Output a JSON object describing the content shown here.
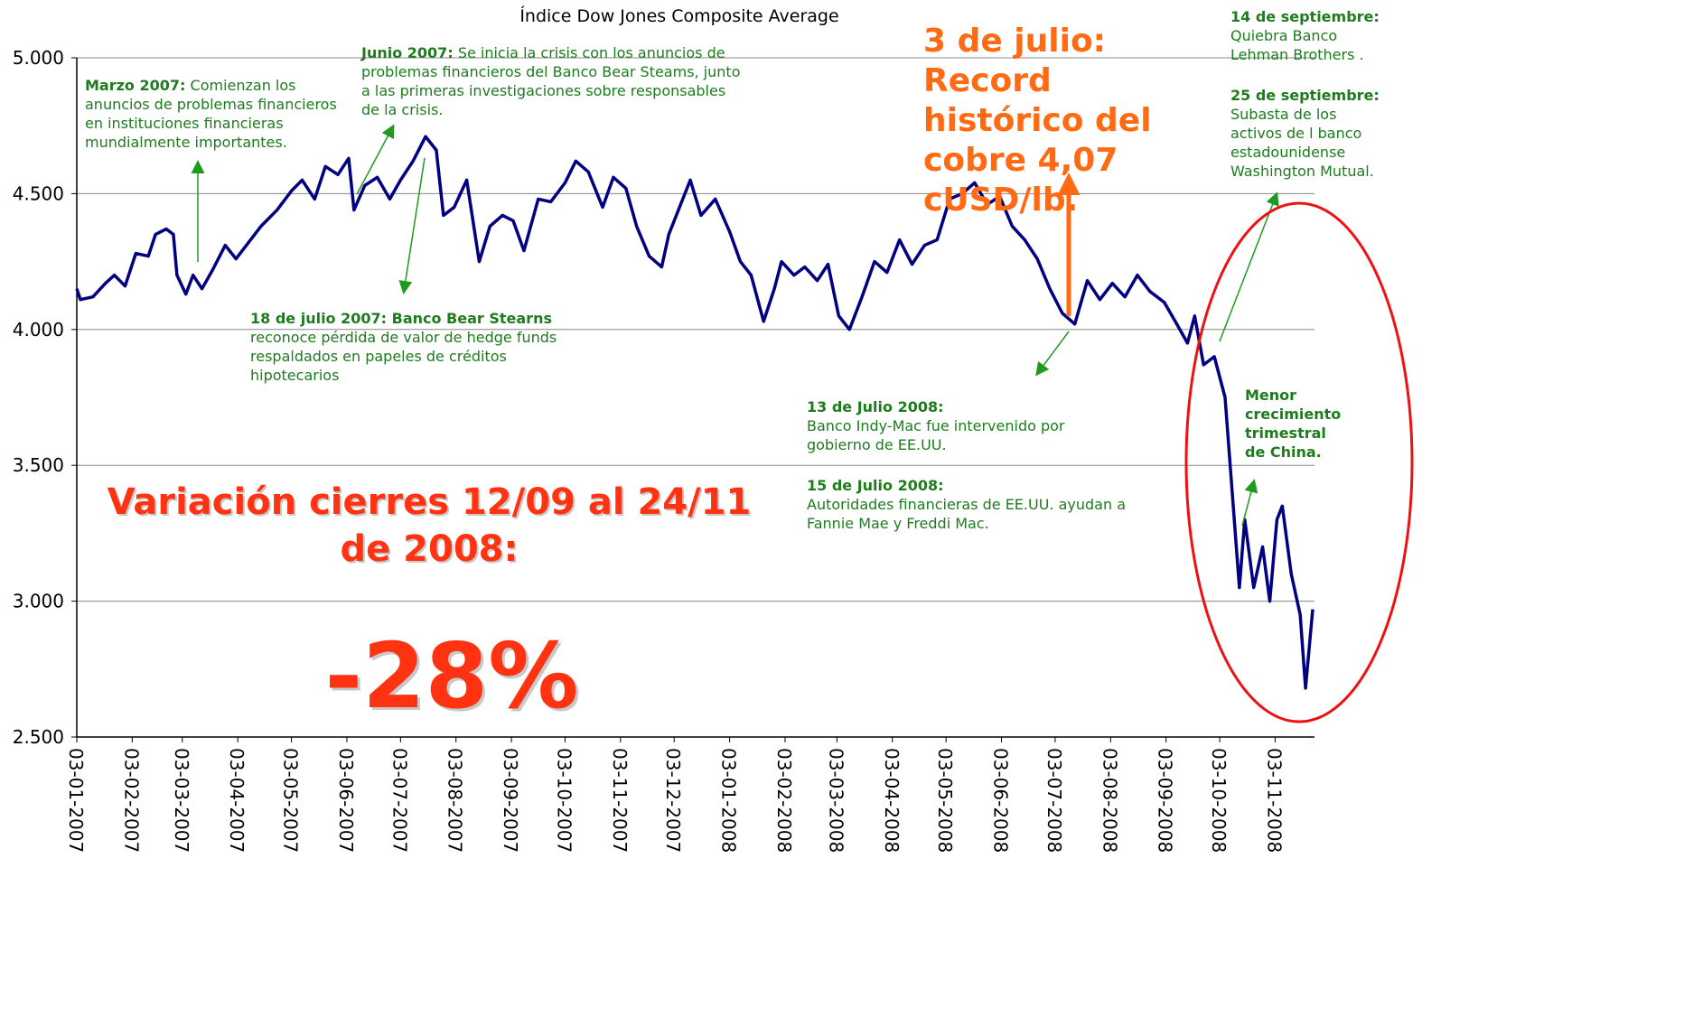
{
  "chart_data": {
    "type": "line",
    "title": "Índice Dow Jones Composite Average",
    "series": [
      {
        "name": "Dow Jones Composite",
        "color": "#000080",
        "x": [
          "2007-01-03",
          "2007-01-05",
          "2007-01-12",
          "2007-01-19",
          "2007-01-24",
          "2007-01-30",
          "2007-02-05",
          "2007-02-12",
          "2007-02-16",
          "2007-02-22",
          "2007-02-26",
          "2007-02-28",
          "2007-03-05",
          "2007-03-09",
          "2007-03-14",
          "2007-03-20",
          "2007-03-27",
          "2007-04-02",
          "2007-04-09",
          "2007-04-16",
          "2007-04-25",
          "2007-05-03",
          "2007-05-09",
          "2007-05-16",
          "2007-05-22",
          "2007-05-29",
          "2007-06-04",
          "2007-06-07",
          "2007-06-13",
          "2007-06-20",
          "2007-06-27",
          "2007-07-03",
          "2007-07-10",
          "2007-07-17",
          "2007-07-23",
          "2007-07-27",
          "2007-08-02",
          "2007-08-09",
          "2007-08-16",
          "2007-08-22",
          "2007-08-29",
          "2007-09-04",
          "2007-09-10",
          "2007-09-18",
          "2007-09-25",
          "2007-10-03",
          "2007-10-09",
          "2007-10-16",
          "2007-10-24",
          "2007-10-30",
          "2007-11-06",
          "2007-11-12",
          "2007-11-19",
          "2007-11-26",
          "2007-11-30",
          "2007-12-06",
          "2007-12-12",
          "2007-12-18",
          "2007-12-26",
          "2008-01-03",
          "2008-01-09",
          "2008-01-15",
          "2008-01-22",
          "2008-01-28",
          "2008-02-01",
          "2008-02-08",
          "2008-02-14",
          "2008-02-21",
          "2008-02-27",
          "2008-03-04",
          "2008-03-10",
          "2008-03-17",
          "2008-03-24",
          "2008-03-31",
          "2008-04-07",
          "2008-04-14",
          "2008-04-21",
          "2008-04-28",
          "2008-05-05",
          "2008-05-12",
          "2008-05-19",
          "2008-05-26",
          "2008-06-02",
          "2008-06-09",
          "2008-06-16",
          "2008-06-23",
          "2008-06-30",
          "2008-07-07",
          "2008-07-14",
          "2008-07-21",
          "2008-07-28",
          "2008-08-04",
          "2008-08-11",
          "2008-08-18",
          "2008-08-25",
          "2008-09-02",
          "2008-09-09",
          "2008-09-15",
          "2008-09-19",
          "2008-09-24",
          "2008-09-30",
          "2008-10-06",
          "2008-10-10",
          "2008-10-14",
          "2008-10-17",
          "2008-10-22",
          "2008-10-27",
          "2008-10-31",
          "2008-11-04",
          "2008-11-07",
          "2008-11-12",
          "2008-11-17",
          "2008-11-20",
          "2008-11-24"
        ],
        "values": [
          4150,
          4110,
          4120,
          4170,
          4200,
          4160,
          4280,
          4270,
          4350,
          4370,
          4350,
          4200,
          4130,
          4200,
          4150,
          4220,
          4310,
          4260,
          4320,
          4380,
          4440,
          4510,
          4550,
          4480,
          4600,
          4570,
          4630,
          4440,
          4530,
          4560,
          4480,
          4550,
          4620,
          4710,
          4660,
          4420,
          4450,
          4550,
          4250,
          4380,
          4420,
          4400,
          4290,
          4480,
          4470,
          4540,
          4620,
          4580,
          4450,
          4560,
          4520,
          4380,
          4270,
          4230,
          4350,
          4450,
          4550,
          4420,
          4480,
          4360,
          4250,
          4200,
          4030,
          4150,
          4250,
          4200,
          4230,
          4180,
          4240,
          4050,
          4000,
          4120,
          4250,
          4210,
          4330,
          4240,
          4310,
          4330,
          4480,
          4500,
          4540,
          4460,
          4490,
          4380,
          4330,
          4260,
          4150,
          4060,
          4020,
          4180,
          4110,
          4170,
          4120,
          4200,
          4140,
          4100,
          4020,
          3950,
          4050,
          3870,
          3900,
          3750,
          3400,
          3050,
          3300,
          3050,
          3200,
          3000,
          3300,
          3350,
          3100,
          2950,
          2680,
          2970
        ]
      }
    ],
    "xlim": [
      "2007-01-03",
      "2008-11-25"
    ],
    "xticks": [
      {
        "value": "2007-01-03",
        "label": "03-01-2007"
      },
      {
        "value": "2007-02-03",
        "label": "03-02-2007"
      },
      {
        "value": "2007-03-03",
        "label": "03-03-2007"
      },
      {
        "value": "2007-04-03",
        "label": "03-04-2007"
      },
      {
        "value": "2007-05-03",
        "label": "03-05-2007"
      },
      {
        "value": "2007-06-03",
        "label": "03-06-2007"
      },
      {
        "value": "2007-07-03",
        "label": "03-07-2007"
      },
      {
        "value": "2007-08-03",
        "label": "03-08-2007"
      },
      {
        "value": "2007-09-03",
        "label": "03-09-2007"
      },
      {
        "value": "2007-10-03",
        "label": "03-10-2007"
      },
      {
        "value": "2007-11-03",
        "label": "03-11-2007"
      },
      {
        "value": "2007-12-03",
        "label": "03-12-2007"
      },
      {
        "value": "2008-01-03",
        "label": "03-01-2008"
      },
      {
        "value": "2008-02-03",
        "label": "03-02-2008"
      },
      {
        "value": "2008-03-03",
        "label": "03-03-2008"
      },
      {
        "value": "2008-04-03",
        "label": "03-04-2008"
      },
      {
        "value": "2008-05-03",
        "label": "03-05-2008"
      },
      {
        "value": "2008-06-03",
        "label": "03-06-2008"
      },
      {
        "value": "2008-07-03",
        "label": "03-07-2008"
      },
      {
        "value": "2008-08-03",
        "label": "03-08-2008"
      },
      {
        "value": "2008-09-03",
        "label": "03-09-2008"
      },
      {
        "value": "2008-10-03",
        "label": "03-10-2008"
      },
      {
        "value": "2008-11-03",
        "label": "03-11-2008"
      }
    ],
    "ylim": [
      2500,
      5000
    ],
    "yticks": [
      {
        "value": 2500,
        "label": "2.500"
      },
      {
        "value": 3000,
        "label": "3.000"
      },
      {
        "value": 3500,
        "label": "3.500"
      },
      {
        "value": 4000,
        "label": "4.000"
      },
      {
        "value": 4500,
        "label": "4.500"
      },
      {
        "value": 5000,
        "label": "5.000"
      }
    ],
    "grid": true,
    "annotations": [
      {
        "title": "Marzo 2007:",
        "text": "Comienzan los anuncios de problemas financieros en instituciones financieras mundialmente importantes."
      },
      {
        "title": "Junio 2007:",
        "text": "Se inicia la crisis con los anuncios  de problemas financieros del Banco Bear Steams, junto a las primeras investigaciones sobre responsables de la crisis."
      },
      {
        "title": "18 de julio 2007: Banco Bear Stearns",
        "text": "reconoce pérdida de valor de hedge funds respaldados en papeles de créditos hipotecarios"
      },
      {
        "title": "13 de Julio 2008:",
        "text": "Banco Indy-Mac fue intervenido por gobierno de EE.UU."
      },
      {
        "title": "15 de Julio 2008:",
        "text": "Autoridades financieras de EE.UU. ayudan a Fannie Mae y Freddi Mac."
      },
      {
        "title": "14 de septiembre:",
        "text": "Quiebra Banco Lehman Brothers ."
      },
      {
        "title": "25 de septiembre:",
        "text": "Subasta de los activos de l banco estadounidense Washington Mutual."
      },
      {
        "title": "Menor crecimiento trimestral de China."
      }
    ],
    "highlight": "3 de julio: Record histórico del cobre 4,07 cUSD/lb.",
    "variation_label": "Variación cierres 12/09 al 24/11 de 2008:",
    "variation_value": "-28%"
  }
}
